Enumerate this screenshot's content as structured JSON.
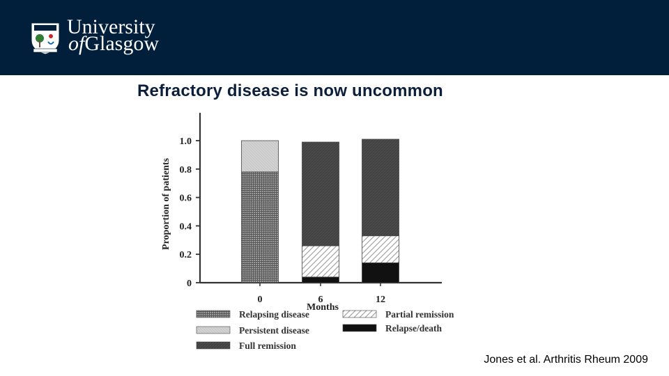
{
  "header": {
    "institution_line1": "University",
    "institution_line2_of": "of",
    "institution_line2_name": "Glasgow",
    "bg_color": "#011f3a"
  },
  "slide": {
    "title": "Refractory disease is now uncommon",
    "citation": "Jones et al. Arthritis Rheum 2009"
  },
  "chart_data": {
    "type": "bar",
    "stacked": true,
    "categories": [
      "0",
      "6",
      "12"
    ],
    "xlabel": "Months",
    "ylabel": "Proportion of patients",
    "ylim": [
      0,
      1.0
    ],
    "yticks": [
      "0",
      "0.2",
      "0.4",
      "0.6",
      "0.8",
      "1.0"
    ],
    "series": [
      {
        "name": "Relapse/death",
        "values": [
          0,
          0.04,
          0.14
        ],
        "pattern": "solid"
      },
      {
        "name": "Relapsing disease",
        "values": [
          0.78,
          0,
          0
        ],
        "pattern": "dense-hatch"
      },
      {
        "name": "Partial remission",
        "values": [
          0,
          0.22,
          0.19
        ],
        "pattern": "diagonal"
      },
      {
        "name": "Persistent disease",
        "values": [
          0.22,
          0,
          0
        ],
        "pattern": "light"
      },
      {
        "name": "Full remission",
        "values": [
          0,
          0.73,
          0.68
        ],
        "pattern": "dark"
      }
    ],
    "legend": [
      {
        "label": "Relapsing disease",
        "pattern": "dense-hatch"
      },
      {
        "label": "Partial remission",
        "pattern": "diagonal"
      },
      {
        "label": "Persistent disease",
        "pattern": "light"
      },
      {
        "label": "Relapse/death",
        "pattern": "solid"
      },
      {
        "label": "Full remission",
        "pattern": "dark"
      }
    ]
  }
}
